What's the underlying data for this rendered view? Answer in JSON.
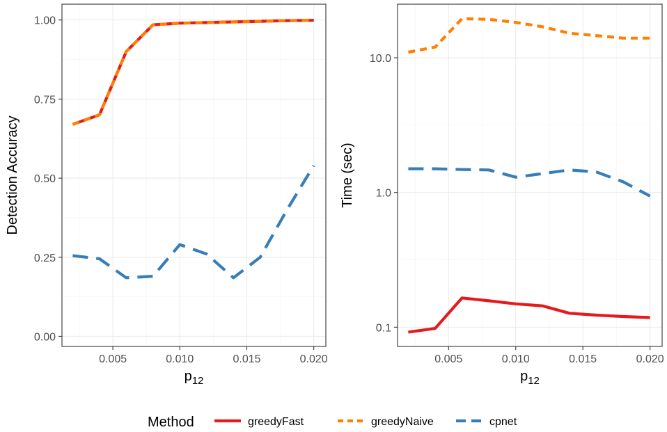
{
  "legend": {
    "title": "Method",
    "entries": [
      {
        "label": "greedyFast",
        "color": "#E41A1C",
        "dash": "solid"
      },
      {
        "label": "greedyNaive",
        "color": "#FF7F00",
        "dash": "dashed-short"
      },
      {
        "label": "cpnet",
        "color": "#377EB8",
        "dash": "dashed-long"
      }
    ]
  },
  "chart_data": [
    {
      "type": "line",
      "xlabel": "p",
      "xlabel_subscript": "12",
      "ylabel": "Detection Accuracy",
      "xlim": [
        0.0012,
        0.0209
      ],
      "ylim": [
        -0.032,
        1.05
      ],
      "yscale": "linear",
      "grid": true,
      "x": [
        0.002,
        0.004,
        0.006,
        0.008,
        0.01,
        0.012,
        0.014,
        0.016,
        0.018,
        0.02
      ],
      "x_ticks": [
        0.005,
        0.01,
        0.015,
        0.02
      ],
      "x_tick_labels": [
        "0.005",
        "0.010",
        "0.015",
        "0.020"
      ],
      "y_ticks": [
        0.0,
        0.25,
        0.5,
        0.75,
        1.0
      ],
      "y_tick_labels": [
        "0.00",
        "0.25",
        "0.50",
        "0.75",
        "1.00"
      ],
      "series": [
        {
          "name": "greedyFast",
          "values": [
            0.67,
            0.7,
            0.9,
            0.985,
            0.99,
            0.992,
            0.994,
            0.996,
            0.998,
            0.999
          ]
        },
        {
          "name": "greedyNaive",
          "values": [
            0.67,
            0.7,
            0.9,
            0.985,
            0.99,
            0.992,
            0.994,
            0.996,
            0.998,
            0.999
          ]
        },
        {
          "name": "cpnet",
          "values": [
            0.255,
            0.245,
            0.185,
            0.19,
            0.29,
            0.26,
            0.185,
            0.25,
            0.4,
            0.54
          ]
        }
      ]
    },
    {
      "type": "line",
      "xlabel": "p",
      "xlabel_subscript": "12",
      "ylabel": "Time (sec)",
      "xlim": [
        0.0012,
        0.0209
      ],
      "ylim": [
        0.072,
        25.0
      ],
      "yscale": "log",
      "grid": true,
      "x": [
        0.002,
        0.004,
        0.006,
        0.008,
        0.01,
        0.012,
        0.014,
        0.016,
        0.018,
        0.02
      ],
      "x_ticks": [
        0.005,
        0.01,
        0.015,
        0.02
      ],
      "x_tick_labels": [
        "0.005",
        "0.010",
        "0.015",
        "0.020"
      ],
      "y_ticks": [
        0.1,
        1.0,
        10.0
      ],
      "y_tick_labels": [
        "0.1",
        "1.0",
        "10.0"
      ],
      "series": [
        {
          "name": "greedyFast",
          "values": [
            0.092,
            0.098,
            0.165,
            0.157,
            0.149,
            0.144,
            0.127,
            0.123,
            0.12,
            0.118
          ]
        },
        {
          "name": "greedyNaive",
          "values": [
            11.0,
            12.0,
            19.5,
            19.3,
            18.3,
            17.0,
            15.2,
            14.6,
            14.0,
            14.0
          ]
        },
        {
          "name": "cpnet",
          "values": [
            1.5,
            1.5,
            1.48,
            1.47,
            1.3,
            1.38,
            1.47,
            1.42,
            1.2,
            0.94
          ]
        }
      ]
    }
  ]
}
